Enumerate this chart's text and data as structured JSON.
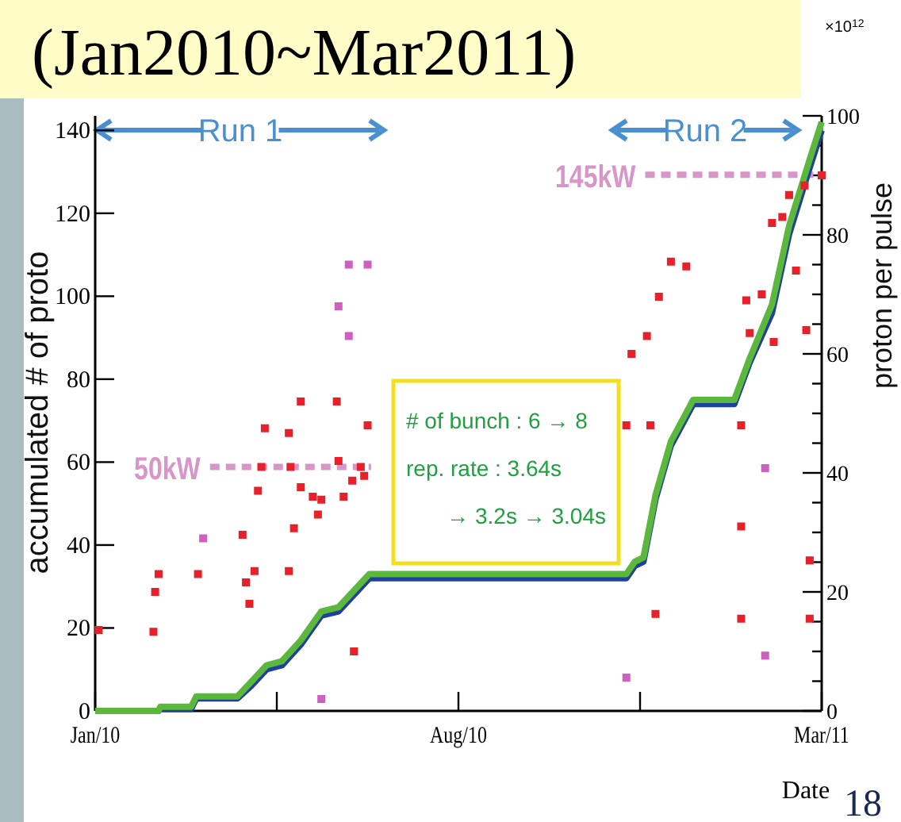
{
  "chart_data": {
    "type": "line",
    "title": "(Jan2010~Mar2011)",
    "xlabel": "Date",
    "ylabel": "accumulated # of proto",
    "y2label": "proton per pulse",
    "xlim": [
      "2010-01-01",
      "2011-03-01"
    ],
    "xticks": [
      {
        "value": "2010-01-01",
        "label": "Jan/10"
      },
      {
        "value": "2010-04-17",
        "label": null
      },
      {
        "value": "2010-08-01",
        "label": "Aug/10"
      },
      {
        "value": "2010-11-15",
        "label": null
      },
      {
        "value": "2011-03-01",
        "label": "Mar/11"
      }
    ],
    "ylim": [
      0,
      143.5
    ],
    "yticks": [
      0,
      20,
      40,
      60,
      80,
      100,
      120,
      140
    ],
    "y2lim": [
      0,
      100
    ],
    "y2ticks": [
      0,
      {
        "value": 5,
        "label": null
      },
      {
        "value": 10,
        "label": null
      },
      {
        "value": 15,
        "label": null
      },
      20,
      {
        "value": 25,
        "label": null
      },
      {
        "value": 30,
        "label": null
      },
      {
        "value": 35,
        "label": null
      },
      40,
      {
        "value": 45,
        "label": null
      },
      {
        "value": 50,
        "label": null
      },
      {
        "value": 55,
        "label": null
      },
      60,
      {
        "value": 65,
        "label": null
      },
      {
        "value": 70,
        "label": null
      },
      {
        "value": 75,
        "label": null
      },
      80,
      {
        "value": 85,
        "label": null
      },
      {
        "value": 90,
        "label": null
      },
      {
        "value": 95,
        "label": null
      },
      100
    ],
    "grid": false,
    "series": [
      {
        "type": "scatter",
        "marker": "square",
        "axis": "y2",
        "color": "#e8202a",
        "x": [
          "2010-01-03",
          "2010-02-04",
          "2010-02-05",
          "2010-02-07",
          "2010-03-02",
          "2010-03-28",
          "2010-03-30",
          "2010-04-01",
          "2010-04-04",
          "2010-04-06",
          "2010-04-08",
          "2010-04-10",
          "2010-04-24",
          "2010-04-25",
          "2010-04-24",
          "2010-04-27",
          "2010-05-01",
          "2010-05-01",
          "2010-05-08",
          "2010-05-11",
          "2010-05-13",
          "2010-05-22",
          "2010-05-23",
          "2010-05-26",
          "2010-05-31",
          "2010-06-01",
          "2010-06-05",
          "2010-06-07",
          "2010-06-09",
          "2010-11-07",
          "2010-11-10",
          "2010-11-19",
          "2010-11-21",
          "2010-11-24",
          "2010-11-26",
          "2010-12-03",
          "2010-12-12",
          "2011-01-13",
          "2011-01-13",
          "2011-01-13",
          "2011-01-16",
          "2011-01-18",
          "2011-01-25",
          "2011-01-31",
          "2011-02-01",
          "2011-02-06",
          "2011-02-10",
          "2011-02-14",
          "2011-02-19",
          "2011-02-20",
          "2011-02-22",
          "2011-02-22",
          "2011-03-01"
        ],
        "values": [
          13.6,
          13.3,
          20,
          23,
          23,
          29.6,
          21.6,
          18,
          23.5,
          37,
          41,
          47.5,
          46.7,
          41,
          23.5,
          30.7,
          52,
          37.6,
          36,
          33,
          35.5,
          52,
          42,
          36,
          38.7,
          10,
          41,
          39.5,
          48,
          48,
          60,
          63,
          48,
          16.3,
          69.6,
          75.5,
          74.7,
          48,
          15.5,
          31,
          69,
          63.5,
          70,
          82,
          62,
          83,
          86.7,
          74,
          88.3,
          64,
          25.3,
          15.5,
          90
        ]
      },
      {
        "type": "scatter",
        "marker": "square",
        "axis": "y2",
        "color": "#d060c0",
        "x": [
          "2010-03-05",
          "2010-05-13",
          "2010-05-23",
          "2010-05-29",
          "2010-05-29",
          "2010-06-09",
          "2010-11-07",
          "2011-01-27",
          "2011-01-27"
        ],
        "values": [
          29,
          2,
          68,
          63,
          75,
          75,
          5.6,
          40.8,
          9.3
        ]
      },
      {
        "type": "line",
        "axis": "y2",
        "name": "50kW",
        "color": "#d896c8",
        "line_style": "dashed",
        "x": [
          "2010-03-09",
          "2010-06-11"
        ],
        "values": [
          41,
          41
        ]
      },
      {
        "type": "line",
        "axis": "y2",
        "name": "145kW",
        "color": "#d896c8",
        "line_style": "dashed",
        "x": [
          "2010-11-18",
          "2011-03-01"
        ],
        "values": [
          90.1,
          90.1
        ]
      },
      {
        "color": "#2040a0",
        "line_style": "solid",
        "x": [
          "2010-01-01",
          "2010-02-07",
          "2010-02-08",
          "2010-02-26",
          "2010-03-01",
          "2010-03-25",
          "2010-04-02",
          "2010-04-11",
          "2010-04-20",
          "2010-05-01",
          "2010-05-13",
          "2010-05-23",
          "2010-06-10",
          "2010-11-07",
          "2010-11-12",
          "2010-11-17",
          "2010-11-24",
          "2010-12-03",
          "2010-12-16",
          "2011-01-09",
          "2011-01-18",
          "2011-01-31",
          "2011-02-10",
          "2011-02-22",
          "2011-03-01"
        ],
        "values": [
          0,
          0,
          0.5,
          0.5,
          3,
          3,
          6,
          10,
          11,
          16,
          23,
          24,
          32,
          32,
          35,
          36,
          51,
          64,
          74,
          74,
          84,
          96,
          115,
          131,
          140
        ]
      },
      {
        "color": "#5cb83c",
        "line_style": "solid",
        "x": [
          "2010-01-01",
          "2010-02-07",
          "2010-02-08",
          "2010-02-26",
          "2010-03-01",
          "2010-03-25",
          "2010-04-02",
          "2010-04-11",
          "2010-04-20",
          "2010-05-01",
          "2010-05-13",
          "2010-05-23",
          "2010-06-10",
          "2010-11-07",
          "2010-11-12",
          "2010-11-17",
          "2010-11-24",
          "2010-12-03",
          "2010-12-16",
          "2011-01-09",
          "2011-01-18",
          "2011-01-31",
          "2011-02-10",
          "2011-02-22",
          "2011-03-01"
        ],
        "values": [
          0,
          0,
          1,
          1,
          3.5,
          3.5,
          7,
          11,
          12,
          17,
          24,
          25,
          33,
          33,
          36,
          37,
          52,
          65,
          75,
          75,
          85,
          98,
          117,
          133,
          142
        ]
      }
    ],
    "annotations": [
      "Run 1",
      "Run 2",
      "# of bunch : 6 → 8\nrep. rate : 3.64s\n→ 3.2s → 3.04s",
      "×10$^{12}$",
      "18"
    ]
  }
}
